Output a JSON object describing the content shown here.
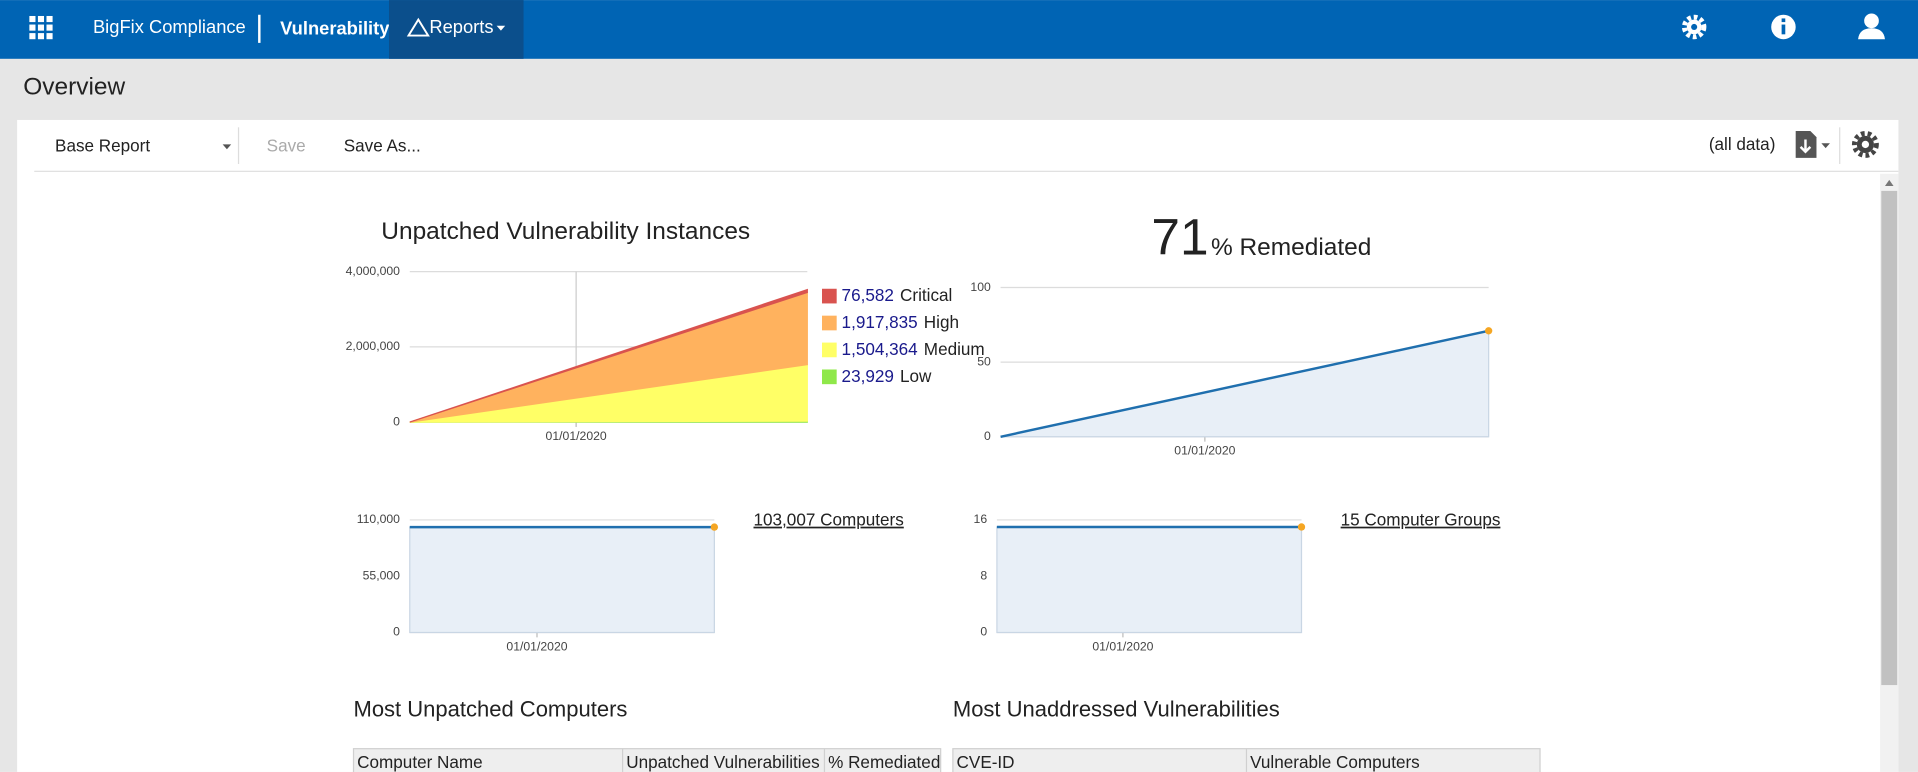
{
  "header": {
    "product": "BigFix Compliance",
    "module": "Vulnerability",
    "menu": "Reports"
  },
  "page_title": "Overview",
  "toolbar": {
    "report": "Base Report",
    "save": "Save",
    "save_as": "Save As...",
    "scope": "(all data)"
  },
  "chart_data": [
    {
      "type": "area",
      "title": "Unpatched Vulnerability Instances",
      "stacked": true,
      "grid": true,
      "xticks": [
        "01/01/2020"
      ],
      "ylim": [
        0,
        4000000
      ],
      "yticks": [
        0,
        {
          "value": 2000000,
          "label": "2,000,000"
        },
        {
          "value": 4000000,
          "label": "4,000,000"
        }
      ],
      "series": [
        {
          "name": "Critical",
          "color": "#d9534f",
          "values": [
            0,
            76582
          ],
          "value_labels": [
            null,
            "76,582"
          ]
        },
        {
          "name": "High",
          "color": "#ffb25e",
          "values": [
            0,
            1917835
          ],
          "value_labels": [
            null,
            "1,917,835"
          ]
        },
        {
          "name": "Medium",
          "color": "#ffff66",
          "values": [
            0,
            1504364
          ],
          "value_labels": [
            null,
            "1,504,364"
          ]
        },
        {
          "name": "Low",
          "color": "#8fe84a",
          "values": [
            0,
            23929
          ],
          "value_labels": [
            null,
            "23,929"
          ]
        }
      ]
    },
    {
      "type": "line",
      "value": 71,
      "title": "% Remediated",
      "grid": true,
      "xticks": [
        "01/01/2020"
      ],
      "ylim": [
        0,
        100
      ],
      "yticks": [
        0,
        50,
        100
      ],
      "fill": "#e8eff7",
      "marker_color": "#f5a623",
      "series": [
        {
          "color": "#1f6fae",
          "values": [
            0,
            71
          ]
        }
      ]
    },
    {
      "type": "line",
      "label": "103,007 Computers",
      "grid": true,
      "xticks": [
        "01/01/2020"
      ],
      "ylim": [
        0,
        110000
      ],
      "yticks": [
        0,
        {
          "value": 55000,
          "label": "55,000"
        },
        {
          "value": 110000,
          "label": "110,000"
        }
      ],
      "fill": "#e8eff7",
      "marker_color": "#f5a623",
      "series": [
        {
          "color": "#1f6fae",
          "values": [
            103007,
            103007
          ]
        }
      ]
    },
    {
      "type": "line",
      "label": "15 Computer Groups",
      "grid": true,
      "xticks": [
        "01/01/2020"
      ],
      "ylim": [
        0,
        16
      ],
      "yticks": [
        0,
        8,
        16
      ],
      "fill": "#e8eff7",
      "marker_color": "#f5a623",
      "series": [
        {
          "color": "#1f6fae",
          "values": [
            15,
            15
          ]
        }
      ]
    }
  ],
  "tables": [
    {
      "title": "Most Unpatched Computers",
      "columns": [
        "Computer Name",
        "Unpatched Vulnerabilities",
        "% Remediated"
      ]
    },
    {
      "title": "Most Unaddressed Vulnerabilities",
      "columns": [
        "CVE-ID",
        "Vulnerable Computers"
      ]
    }
  ]
}
